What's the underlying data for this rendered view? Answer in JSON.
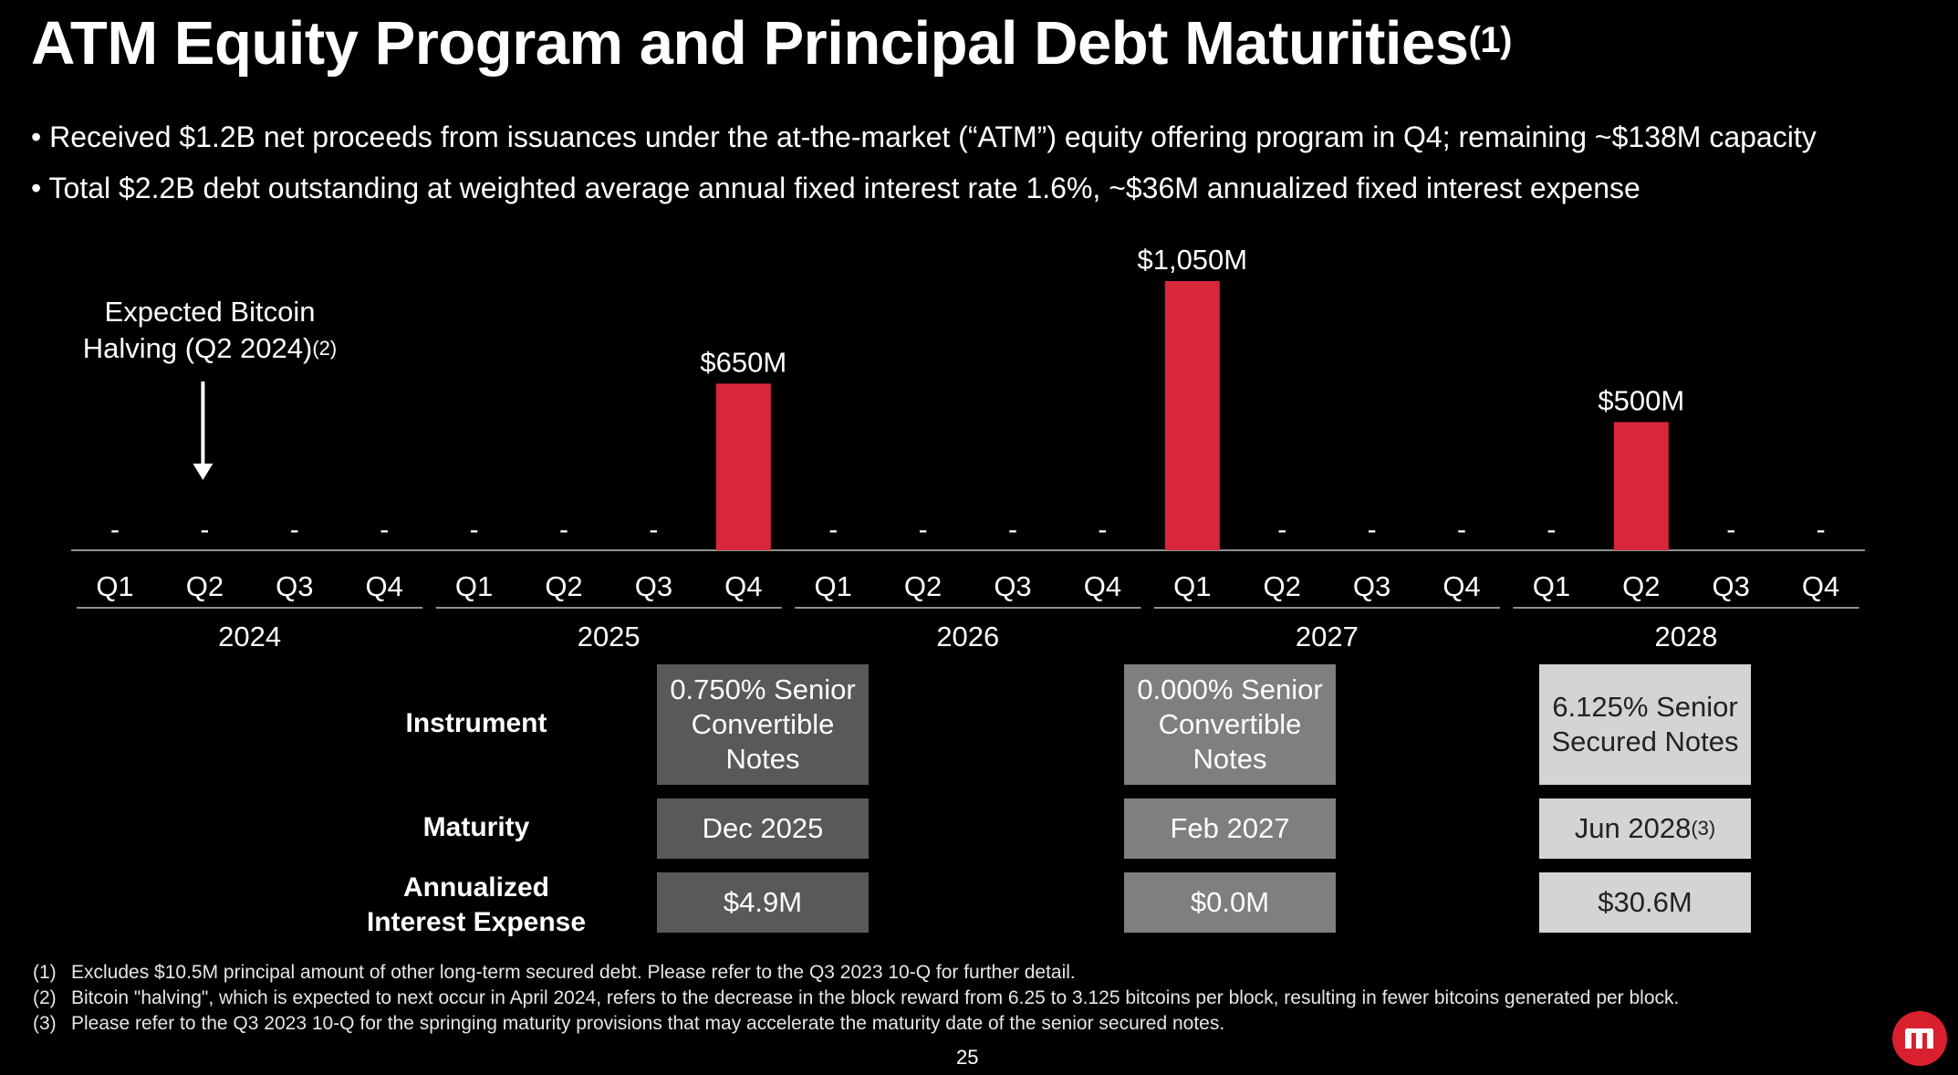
{
  "title": "ATM Equity Program and Principal Debt Maturities",
  "title_sup": "(1)",
  "bullets": [
    "• Received $1.2B net proceeds from issuances under the at-the-market (“ATM”) equity offering program in Q4; remaining ~$138M capacity",
    "• Total $2.2B debt outstanding at weighted average annual fixed interest rate 1.6%, ~$36M annualized fixed interest expense"
  ],
  "annotation": {
    "line1": "Expected Bitcoin",
    "line2": "Halving (Q2 2024)",
    "sup": "(2)"
  },
  "chart_data": {
    "type": "bar",
    "years": [
      "2024",
      "2025",
      "2026",
      "2027",
      "2028"
    ],
    "quarters": [
      "Q1",
      "Q2",
      "Q3",
      "Q4"
    ],
    "categories": [
      "Q1 2024",
      "Q2 2024",
      "Q3 2024",
      "Q4 2024",
      "Q1 2025",
      "Q2 2025",
      "Q3 2025",
      "Q4 2025",
      "Q1 2026",
      "Q2 2026",
      "Q3 2026",
      "Q4 2026",
      "Q1 2027",
      "Q2 2027",
      "Q3 2027",
      "Q4 2027",
      "Q1 2028",
      "Q2 2028",
      "Q3 2028",
      "Q4 2028"
    ],
    "values": [
      0,
      0,
      0,
      0,
      0,
      0,
      0,
      650,
      0,
      0,
      0,
      0,
      1050,
      0,
      0,
      0,
      0,
      500,
      0,
      0
    ],
    "value_labels": [
      "-",
      "-",
      "-",
      "-",
      "-",
      "-",
      "-",
      "$650M",
      "-",
      "-",
      "-",
      "-",
      "$1,050M",
      "-",
      "-",
      "-",
      "-",
      "$500M",
      "-",
      "-"
    ],
    "unit": "$M",
    "bar_color": "#d9273a",
    "annotation_arrow_at": "Q2 2024"
  },
  "table": {
    "row_labels": {
      "instrument": "Instrument",
      "maturity": "Maturity",
      "expense_line1": "Annualized",
      "expense_line2": "Interest Expense"
    },
    "columns": [
      {
        "instrument_lines": [
          "0.750% Senior",
          "Convertible",
          "Notes"
        ],
        "maturity": "Dec 2025",
        "maturity_sup": "",
        "expense": "$4.9M",
        "color": "#58595b"
      },
      {
        "instrument_lines": [
          "0.000% Senior",
          "Convertible",
          "Notes"
        ],
        "maturity": "Feb 2027",
        "maturity_sup": "",
        "expense": "$0.0M",
        "color": "#7f7f7f"
      },
      {
        "instrument_lines": [
          "6.125% Senior",
          "Secured Notes"
        ],
        "maturity": "Jun 2028",
        "maturity_sup": "(3)",
        "expense": "$30.6M",
        "color": "#d3d4d6"
      }
    ]
  },
  "footnotes": [
    {
      "num": "(1)",
      "text": "Excludes $10.5M principal amount of other long-term secured debt. Please refer to the Q3 2023 10-Q for further detail."
    },
    {
      "num": "(2)",
      "text": "Bitcoin \"halving\", which is expected to next occur in April 2024, refers to the decrease in the block reward from 6.25 to 3.125 bitcoins per block, resulting in fewer bitcoins generated per block."
    },
    {
      "num": "(3)",
      "text": "Please refer to the Q3 2023 10-Q for the springing maturity provisions that may accelerate the maturity date of the senior secured notes."
    }
  ],
  "page_number": "25",
  "logo_icon": "microstrategy-logo-icon",
  "logo_color": "#d9202f"
}
